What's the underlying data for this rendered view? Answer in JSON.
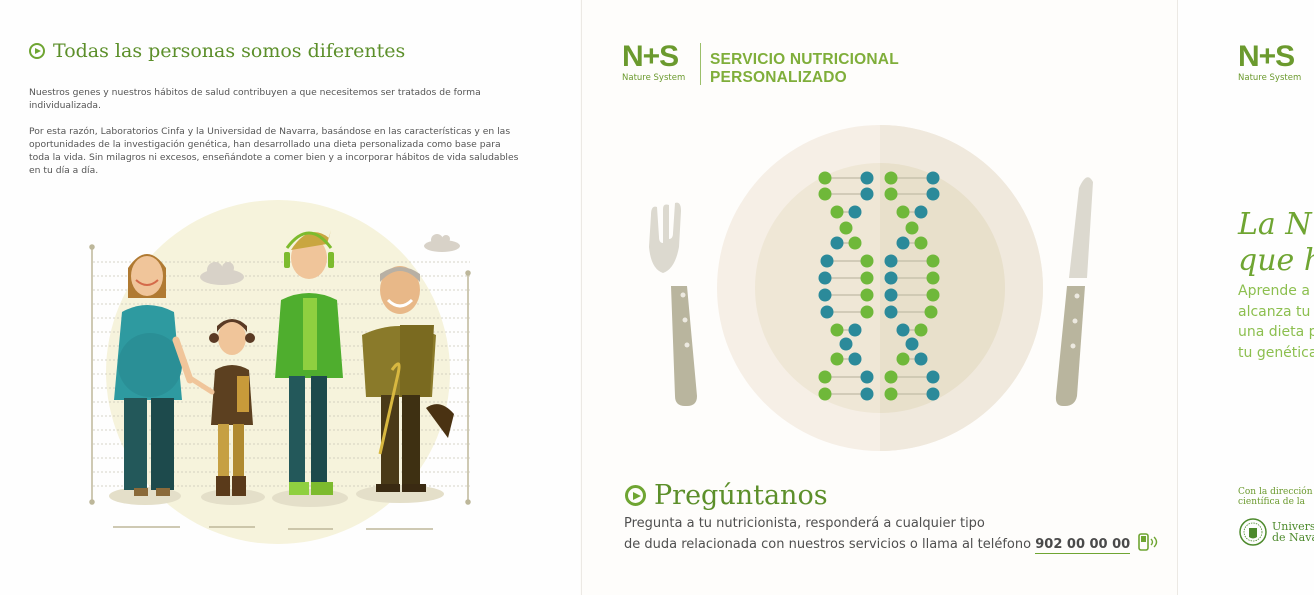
{
  "panel1": {
    "title": "Todas las personas somos diferentes",
    "paragraph1": "Nuestros genes y nuestros hábitos de salud contribuyen a que necesitemos ser tratados de forma individualizada.",
    "paragraph2": "Por esta razón, Laboratorios Cinfa y la Universidad de Navarra, basándose en las características y en las oportunidades de la investigación genética, han desarrollado una dieta personalizada como base para toda la vida. Sin milagros ni excesos, enseñándote a comer bien y a incorporar hábitos de vida saludables en tu día a día."
  },
  "panel2": {
    "logo_text": "N+S",
    "logo_subtitle": "Nature System",
    "service_line1": "SERVICIO NUTRICIONAL",
    "service_line2": "PERSONALIZADO",
    "ask_title": "Pregúntanos",
    "ask_line1": "Pregunta a tu nutricionista, responderá a cualquier tipo",
    "ask_line2": "de duda relacionada con nuestros servicios o llama al teléfono",
    "phone": "902 00 00 00"
  },
  "panel3": {
    "logo_text": "N+S",
    "logo_subtitle": "Nature System",
    "slogan_line1": "La N",
    "slogan_line2": "que h",
    "desc_line1": "Aprende a c",
    "desc_line2": "alcanza tu p",
    "desc_line3": "una dieta p",
    "desc_line4": "tu genética",
    "direction_line1": "Con la dirección",
    "direction_line2": "científica de la",
    "university_line1": "Universi",
    "university_line2": "de Navarr"
  },
  "colors": {
    "brand_green": "#6fa532",
    "dark_green": "#5c8f2a",
    "teal": "#2b8a9a"
  },
  "icons": [
    "play-circle-icon",
    "phone-icon",
    "fork-icon",
    "knife-icon",
    "dna-icon",
    "cloud-icon",
    "university-seal-icon"
  ]
}
